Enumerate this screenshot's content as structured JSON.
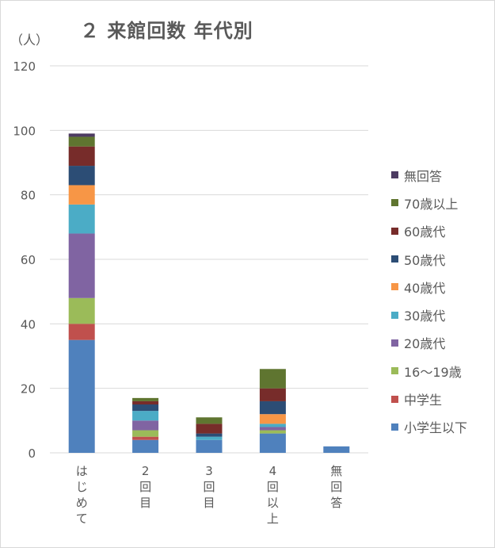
{
  "chart_data": {
    "type": "bar",
    "stacked": true,
    "title": "２ 来館回数 年代別",
    "ylabel": "（人）",
    "xlabel": "",
    "ylim": [
      0,
      120
    ],
    "yticks": [
      0,
      20,
      40,
      60,
      80,
      100,
      120
    ],
    "grid": true,
    "legend_position": "right",
    "categories": [
      "はじめて",
      "2回目",
      "3回目",
      "4回以上",
      "無回答"
    ],
    "series": [
      {
        "name": "小学生以下",
        "color": "#4f81bd",
        "values": [
          35,
          4,
          4,
          6,
          2
        ]
      },
      {
        "name": "中学生",
        "color": "#c0504d",
        "values": [
          5,
          1,
          0,
          0,
          0
        ]
      },
      {
        "name": "16～19歳",
        "color": "#9bbb59",
        "values": [
          8,
          2,
          0,
          1,
          0
        ]
      },
      {
        "name": "20歳代",
        "color": "#8064a2",
        "values": [
          20,
          3,
          0,
          1,
          0
        ]
      },
      {
        "name": "30歳代",
        "color": "#4bacc6",
        "values": [
          9,
          3,
          1,
          1,
          0
        ]
      },
      {
        "name": "40歳代",
        "color": "#f79646",
        "values": [
          6,
          0,
          0,
          3,
          0
        ]
      },
      {
        "name": "50歳代",
        "color": "#2c4d75",
        "values": [
          6,
          2,
          1,
          4,
          0
        ]
      },
      {
        "name": "60歳代",
        "color": "#772c2a",
        "values": [
          6,
          1,
          3,
          4,
          0
        ]
      },
      {
        "name": "70歳以上",
        "color": "#5f7530",
        "values": [
          3,
          1,
          2,
          6,
          0
        ]
      },
      {
        "name": "無回答",
        "color": "#4d3b62",
        "values": [
          1,
          0,
          0,
          0,
          0
        ]
      }
    ]
  }
}
